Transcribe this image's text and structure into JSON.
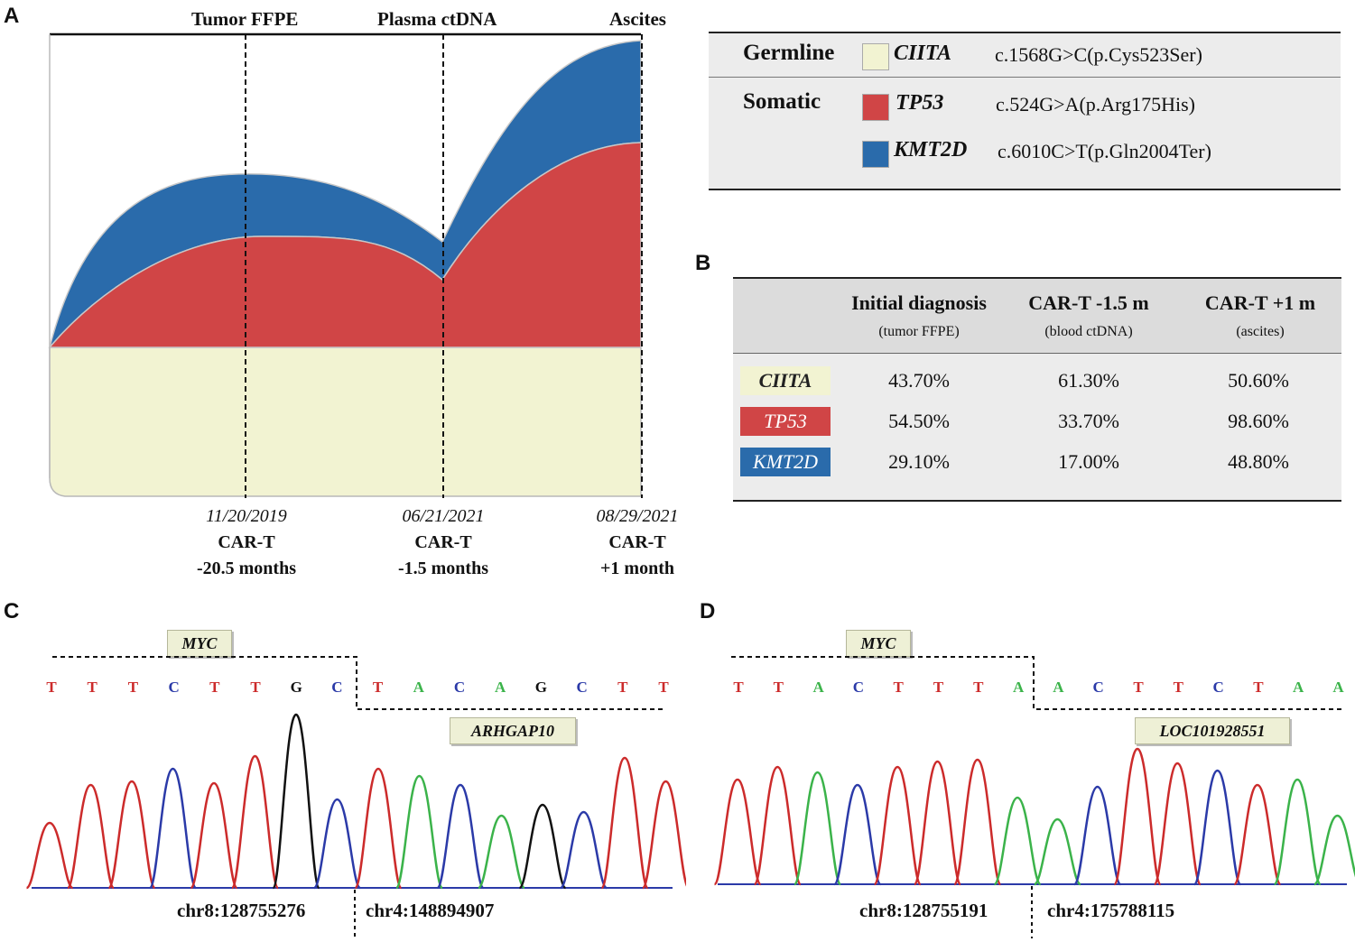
{
  "panels": {
    "a": "A",
    "b": "B",
    "c": "C",
    "d": "D"
  },
  "chart_data": {
    "type": "area",
    "title": "",
    "timepoints": [
      {
        "label": "Tumor FFPE",
        "date": "11/20/2019",
        "line1": "CAR-T",
        "line2": "-20.5 months"
      },
      {
        "label": "Plasma ctDNA",
        "date": "06/21/2021",
        "line1": "CAR-T",
        "line2": "-1.5 months"
      },
      {
        "label": "Ascites",
        "date": "08/29/2021",
        "line1": "CAR-T",
        "line2": "+1 month"
      }
    ],
    "series": [
      {
        "name": "CIITA",
        "values": [
          43.7,
          61.3,
          50.6
        ]
      },
      {
        "name": "TP53",
        "values": [
          54.5,
          33.7,
          98.6
        ]
      },
      {
        "name": "KMT2D",
        "values": [
          29.1,
          17.0,
          48.8
        ]
      }
    ],
    "colors": {
      "CIITA": "#f2f3d2",
      "TP53": "#d04546",
      "KMT2D": "#2a6bab"
    }
  },
  "legend": {
    "germline": {
      "type": "Germline",
      "gene": "CIITA",
      "mutation": "c.1568G>C(p.Cys523Ser)"
    },
    "somatic": [
      {
        "type": "Somatic",
        "gene": "TP53",
        "mutation": "c.524G>A(p.Arg175His)"
      },
      {
        "gene": "KMT2D",
        "mutation": "c.6010C>T(p.Gln2004Ter)"
      }
    ]
  },
  "table_b": {
    "headers": [
      {
        "title": "Initial diagnosis",
        "sub": "(tumor FFPE)"
      },
      {
        "title": "CAR-T -1.5 m",
        "sub": "(blood ctDNA)"
      },
      {
        "title": "CAR-T +1 m",
        "sub": "(ascites)"
      }
    ],
    "rows": [
      {
        "gene": "CIITA",
        "values": [
          "43.70%",
          "61.30%",
          "50.60%"
        ]
      },
      {
        "gene": "TP53",
        "values": [
          "54.50%",
          "33.70%",
          "98.60%"
        ]
      },
      {
        "gene": "KMT2D",
        "values": [
          "29.10%",
          "17.00%",
          "48.80%"
        ]
      }
    ]
  },
  "panel_c": {
    "gene_left": "MYC",
    "gene_right": "ARHGAP10",
    "bases": [
      "T",
      "T",
      "T",
      "C",
      "T",
      "T",
      "G",
      "C",
      "T",
      "A",
      "C",
      "A",
      "G",
      "C",
      "T",
      "T"
    ],
    "coord_left": "chr8:128755276",
    "coord_right": "chr4:148894907"
  },
  "panel_d": {
    "gene_left": "MYC",
    "gene_right": "LOC101928551",
    "bases": [
      "T",
      "T",
      "A",
      "C",
      "T",
      "T",
      "T",
      "A",
      "A",
      "C",
      "T",
      "T",
      "C",
      "T",
      "A",
      "A"
    ],
    "coord_left": "chr8:128755191",
    "coord_right": "chr4:175788115"
  },
  "base_colors": {
    "T": "#cc2b2b",
    "A": "#3bb34a",
    "C": "#2b3aa8",
    "G": "#111111"
  }
}
